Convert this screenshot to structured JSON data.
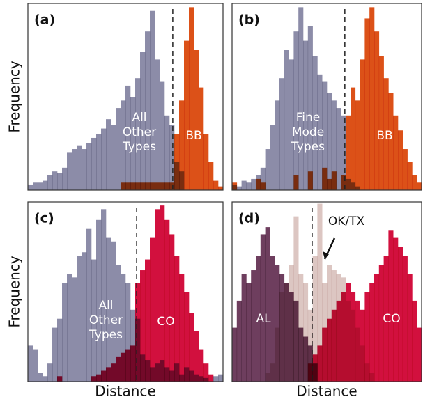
{
  "chart_data": [
    {
      "type": "histogram",
      "panel_label": "(a)",
      "ylabel": "Frequency",
      "bins": [
        0,
        1,
        2,
        3,
        4,
        5,
        6,
        7,
        8,
        9,
        10,
        11,
        12,
        13,
        14,
        15,
        16,
        17,
        18,
        19,
        20,
        21,
        22,
        23,
        24,
        25,
        26,
        27,
        28,
        29,
        30,
        31,
        32,
        33,
        34,
        35,
        36,
        37,
        38,
        39,
        40
      ],
      "xlim": [
        0,
        40
      ],
      "ylim": [
        0,
        100
      ],
      "threshold": 29.7,
      "series": [
        {
          "name": "All Other Types",
          "color": "#8c8ca8",
          "values": [
            3,
            4,
            4,
            5,
            8,
            10,
            9,
            12,
            20,
            22,
            24,
            22,
            25,
            28,
            30,
            33,
            38,
            35,
            44,
            48,
            56,
            50,
            60,
            74,
            85,
            96,
            70,
            58,
            40,
            35,
            15,
            10,
            0,
            0,
            0,
            0,
            0,
            0,
            0,
            0
          ]
        },
        {
          "name": "BB",
          "color": "#dc5118",
          "values": [
            0,
            0,
            0,
            0,
            0,
            0,
            0,
            0,
            0,
            0,
            0,
            0,
            0,
            0,
            0,
            0,
            0,
            0,
            0,
            4,
            4,
            4,
            4,
            4,
            4,
            4,
            4,
            4,
            4,
            4,
            30,
            48,
            80,
            98,
            75,
            55,
            30,
            15,
            5,
            2
          ]
        }
      ]
    },
    {
      "type": "histogram",
      "panel_label": "(b)",
      "bins": [
        0,
        1,
        2,
        3,
        4,
        5,
        6,
        7,
        8,
        9,
        10,
        11,
        12,
        13,
        14,
        15,
        16,
        17,
        18,
        19,
        20,
        21,
        22,
        23,
        24,
        25,
        26,
        27,
        28,
        29,
        30,
        31,
        32,
        33,
        34,
        35,
        36,
        37,
        38,
        39,
        40
      ],
      "xlim": [
        0,
        40
      ],
      "ylim": [
        0,
        100
      ],
      "threshold": 23.8,
      "series": [
        {
          "name": "Fine Mode Types",
          "color": "#8c8ca8",
          "values": [
            3,
            2,
            5,
            4,
            6,
            8,
            12,
            22,
            35,
            48,
            60,
            75,
            70,
            85,
            98,
            80,
            88,
            72,
            62,
            58,
            52,
            48,
            44,
            40,
            6,
            4,
            2,
            0,
            0,
            0,
            0,
            0,
            0,
            0,
            0,
            0,
            0,
            0,
            0,
            0
          ]
        },
        {
          "name": "BB",
          "color": "#dc5118",
          "values": [
            4,
            0,
            0,
            0,
            0,
            6,
            4,
            0,
            0,
            0,
            0,
            0,
            0,
            8,
            0,
            0,
            10,
            0,
            0,
            12,
            6,
            10,
            0,
            8,
            40,
            55,
            48,
            70,
            92,
            98,
            85,
            72,
            60,
            52,
            40,
            32,
            22,
            15,
            8,
            4
          ]
        }
      ]
    },
    {
      "type": "histogram",
      "panel_label": "(c)",
      "ylabel": "Frequency",
      "xlabel": "Distance",
      "bins": [
        0,
        1,
        2,
        3,
        4,
        5,
        6,
        7,
        8,
        9,
        10,
        11,
        12,
        13,
        14,
        15,
        16,
        17,
        18,
        19,
        20,
        21,
        22,
        23,
        24,
        25,
        26,
        27,
        28,
        29,
        30,
        31,
        32,
        33,
        34,
        35,
        36,
        37,
        38,
        39,
        40
      ],
      "xlim": [
        0,
        40
      ],
      "ylim": [
        0,
        100
      ],
      "threshold": 22.3,
      "series": [
        {
          "name": "All Other Types",
          "color": "#8c8ca8",
          "values": [
            20,
            18,
            5,
            3,
            10,
            30,
            35,
            55,
            60,
            58,
            70,
            72,
            85,
            68,
            90,
            96,
            80,
            78,
            65,
            60,
            55,
            40,
            35,
            15,
            12,
            8,
            10,
            12,
            8,
            6,
            10,
            4,
            8,
            6,
            4,
            3,
            2,
            0,
            3,
            4
          ]
        },
        {
          "name": "CO",
          "color": "#d2103e",
          "values": [
            0,
            0,
            0,
            0,
            0,
            0,
            3,
            0,
            0,
            0,
            0,
            0,
            0,
            3,
            4,
            6,
            8,
            10,
            14,
            16,
            18,
            20,
            55,
            62,
            68,
            80,
            96,
            98,
            90,
            82,
            70,
            60,
            50,
            38,
            28,
            18,
            10,
            4,
            0,
            0
          ]
        }
      ]
    },
    {
      "type": "histogram",
      "panel_label": "(d)",
      "xlabel": "Distance",
      "bins": [
        0,
        1,
        2,
        3,
        4,
        5,
        6,
        7,
        8,
        9,
        10,
        11,
        12,
        13,
        14,
        15,
        16,
        17,
        18,
        19,
        20,
        21,
        22,
        23,
        24,
        25,
        26,
        27,
        28,
        29,
        30,
        31,
        32,
        33,
        34,
        35,
        36,
        37,
        38,
        39,
        40
      ],
      "xlim": [
        0,
        40
      ],
      "ylim": [
        0,
        100
      ],
      "threshold": 16.9,
      "series": [
        {
          "name": "AL",
          "color": "#6e3e5e",
          "values": [
            30,
            45,
            60,
            55,
            62,
            70,
            82,
            86,
            70,
            65,
            60,
            55,
            50,
            45,
            30,
            25,
            20,
            10,
            0,
            0,
            0,
            0,
            0,
            0,
            0,
            0,
            0,
            0,
            0,
            0,
            0,
            0,
            0,
            0,
            0,
            0,
            0,
            0,
            0,
            0
          ]
        },
        {
          "name": "OK/TX",
          "color": "#dcc6c2",
          "values": [
            0,
            0,
            0,
            0,
            0,
            0,
            0,
            5,
            10,
            30,
            50,
            55,
            65,
            92,
            60,
            55,
            40,
            70,
            99,
            55,
            65,
            62,
            60,
            58,
            45,
            40,
            30,
            20,
            10,
            5,
            0,
            0,
            0,
            0,
            0,
            0,
            0,
            0,
            0,
            0
          ]
        },
        {
          "name": "CO",
          "color": "#d2103e",
          "values": [
            0,
            0,
            0,
            0,
            0,
            0,
            0,
            0,
            0,
            0,
            0,
            0,
            0,
            0,
            0,
            0,
            10,
            15,
            20,
            30,
            35,
            40,
            45,
            50,
            55,
            50,
            45,
            40,
            50,
            55,
            60,
            65,
            70,
            84,
            80,
            75,
            70,
            60,
            45,
            30
          ]
        }
      ]
    }
  ]
}
